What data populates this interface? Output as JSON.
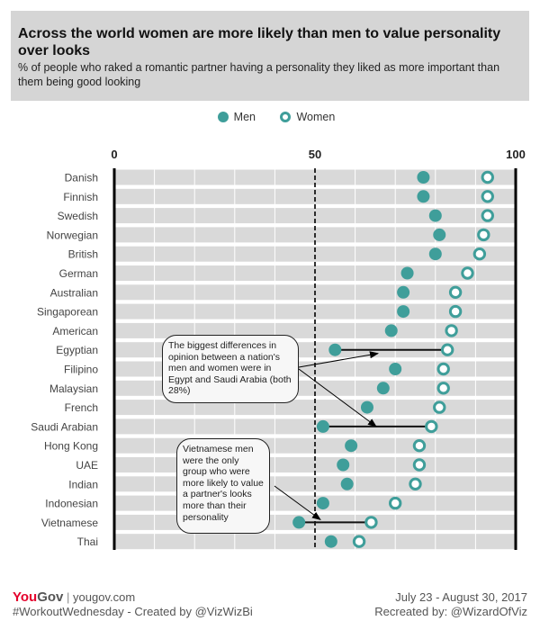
{
  "header": {
    "title": "Across the world women are more likely than men to value personality over looks",
    "subtitle": "% of people who raked a romantic partner having a personality they liked as more important than them being good looking"
  },
  "colors": {
    "men": "#3f9e9a",
    "women": "#3f9e9a",
    "band": "#d9d9d9",
    "header_bg": "#d5d5d5",
    "yougov_red": "#e4002b"
  },
  "chart_data": {
    "type": "dot",
    "xlim": [
      0,
      100
    ],
    "xticks": [
      0,
      50,
      100
    ],
    "xtick_labels": [
      "0",
      "50",
      "100"
    ],
    "reference_line": 50,
    "legend": [
      "Men",
      "Women"
    ],
    "legend_placement": "top-center",
    "categories": [
      "Danish",
      "Finnish",
      "Swedish",
      "Norwegian",
      "British",
      "German",
      "Australian",
      "Singaporean",
      "American",
      "Egyptian",
      "Filipino",
      "Malaysian",
      "French",
      "Saudi Arabian",
      "Hong Kong",
      "UAE",
      "Indian",
      "Indonesian",
      "Vietnamese",
      "Thai"
    ],
    "series": [
      {
        "name": "Men",
        "values": [
          77,
          77,
          80,
          81,
          80,
          73,
          72,
          72,
          69,
          55,
          70,
          67,
          63,
          52,
          59,
          57,
          58,
          52,
          46,
          54
        ]
      },
      {
        "name": "Women",
        "values": [
          93,
          93,
          93,
          92,
          91,
          88,
          85,
          85,
          84,
          83,
          82,
          82,
          81,
          79,
          76,
          76,
          75,
          70,
          64,
          61
        ]
      }
    ],
    "highlighted": [
      "Egyptian",
      "Saudi Arabian",
      "Vietnamese"
    ],
    "annotations": [
      "The biggest differences in opinion between a nation's men and women were in Egypt and Saudi Arabia (both 28%)",
      "Vietnamese men were the only group who were more likely to value a partner's looks more than their personality"
    ]
  },
  "footer": {
    "brand_you": "You",
    "brand_gov": "Gov",
    "separator": "|",
    "site": "yougov.com",
    "credit": "#WorkoutWednesday - Created by @VizWizBi",
    "dates": "July 23 - August 30, 2017",
    "recreated": "Recreated by: @WizardOfViz"
  }
}
